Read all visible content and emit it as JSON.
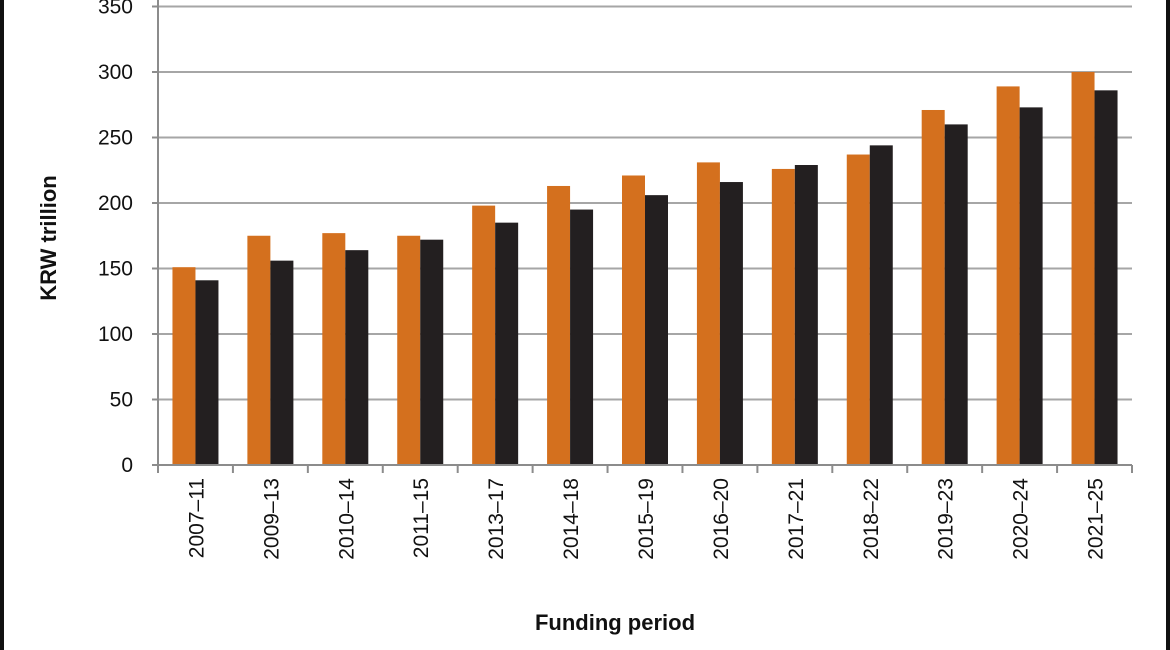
{
  "chart_data": {
    "type": "bar",
    "title": "",
    "xlabel": "Funding period",
    "ylabel": "KRW trillion",
    "ylim": [
      0,
      350
    ],
    "yticks": [
      0,
      50,
      100,
      150,
      200,
      250,
      300,
      350
    ],
    "grid": true,
    "legend": "none",
    "categories": [
      "2007–11",
      "2009–13",
      "2010–14",
      "2011–15",
      "2013–17",
      "2014–18",
      "2015–19",
      "2016–20",
      "2017–21",
      "2018–22",
      "2019–23",
      "2020–24",
      "2021–25"
    ],
    "series": [
      {
        "color": "#d4701e",
        "values": [
          151,
          175,
          177,
          175,
          198,
          213,
          221,
          231,
          226,
          237,
          271,
          289,
          300
        ]
      },
      {
        "color": "#231f20",
        "values": [
          141,
          156,
          164,
          172,
          185,
          195,
          206,
          216,
          229,
          244,
          260,
          273,
          286
        ]
      }
    ]
  }
}
